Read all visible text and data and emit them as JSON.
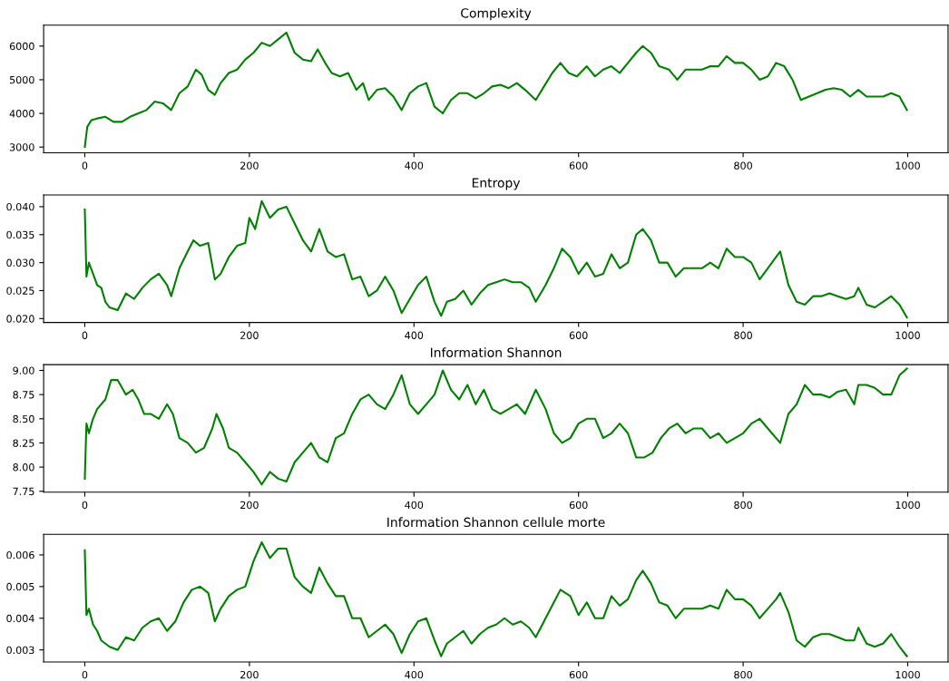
{
  "chart_data": [
    {
      "type": "line",
      "title": "Complexity",
      "xlim": [
        -50,
        1049
      ],
      "xticks": [
        0,
        200,
        400,
        600,
        800,
        1000
      ],
      "ylim": [
        2830,
        6620
      ],
      "yticks": [
        3000,
        4000,
        5000,
        6000
      ],
      "grid": false,
      "legend": false,
      "series": [
        {
          "color": "#008000",
          "x": [
            0,
            3,
            8,
            15,
            25,
            35,
            45,
            55,
            65,
            75,
            85,
            95,
            105,
            115,
            125,
            135,
            142,
            150,
            158,
            165,
            175,
            185,
            195,
            205,
            215,
            225,
            235,
            245,
            255,
            265,
            275,
            283,
            292,
            300,
            310,
            320,
            330,
            338,
            345,
            355,
            365,
            375,
            385,
            395,
            405,
            415,
            425,
            435,
            445,
            455,
            465,
            475,
            485,
            495,
            505,
            515,
            525,
            535,
            548,
            558,
            568,
            578,
            588,
            598,
            610,
            620,
            630,
            640,
            650,
            660,
            670,
            678,
            688,
            698,
            710,
            720,
            730,
            740,
            750,
            760,
            770,
            780,
            790,
            800,
            810,
            820,
            830,
            840,
            850,
            860,
            870,
            880,
            890,
            900,
            910,
            920,
            930,
            940,
            950,
            960,
            970,
            980,
            990,
            999
          ],
          "values": [
            3000,
            3600,
            3800,
            3850,
            3900,
            3750,
            3750,
            3900,
            4000,
            4100,
            4350,
            4300,
            4100,
            4600,
            4800,
            5300,
            5150,
            4700,
            4550,
            4900,
            5200,
            5300,
            5600,
            5800,
            6100,
            6000,
            6200,
            6400,
            5800,
            5600,
            5550,
            5900,
            5500,
            5200,
            5100,
            5200,
            4700,
            4900,
            4400,
            4700,
            4750,
            4500,
            4100,
            4600,
            4800,
            4900,
            4200,
            4000,
            4400,
            4600,
            4600,
            4450,
            4600,
            4800,
            4850,
            4750,
            4900,
            4700,
            4400,
            4800,
            5200,
            5500,
            5200,
            5100,
            5400,
            5100,
            5300,
            5400,
            5200,
            5500,
            5800,
            6000,
            5800,
            5400,
            5300,
            5000,
            5300,
            5300,
            5300,
            5400,
            5400,
            5700,
            5500,
            5500,
            5300,
            5000,
            5100,
            5500,
            5400,
            5000,
            4400,
            4500,
            4600,
            4700,
            4750,
            4700,
            4500,
            4700,
            4500,
            4500,
            4500,
            4600,
            4500,
            4100
          ]
        }
      ]
    },
    {
      "type": "line",
      "title": "Entropy",
      "xlim": [
        -50,
        1049
      ],
      "xticks": [
        0,
        200,
        400,
        600,
        800,
        1000
      ],
      "ylim": [
        0.0193,
        0.0421
      ],
      "yticks": [
        {
          "value": 0.02,
          "label": "0.020"
        },
        {
          "value": 0.025,
          "label": "0.025"
        },
        {
          "value": 0.03,
          "label": "0.030"
        },
        {
          "value": 0.035,
          "label": "0.035"
        },
        {
          "value": 0.04,
          "label": "0.040"
        }
      ],
      "grid": false,
      "legend": false,
      "series": [
        {
          "color": "#008000",
          "x": [
            0,
            2,
            5,
            10,
            15,
            20,
            25,
            30,
            40,
            50,
            60,
            70,
            80,
            90,
            100,
            105,
            115,
            125,
            132,
            140,
            150,
            158,
            165,
            175,
            185,
            195,
            200,
            207,
            215,
            225,
            235,
            245,
            255,
            265,
            275,
            285,
            295,
            305,
            315,
            325,
            335,
            345,
            355,
            365,
            375,
            385,
            395,
            405,
            415,
            425,
            433,
            440,
            450,
            460,
            470,
            480,
            490,
            500,
            510,
            520,
            530,
            540,
            548,
            560,
            570,
            580,
            590,
            600,
            610,
            620,
            630,
            640,
            650,
            660,
            670,
            678,
            688,
            698,
            708,
            718,
            728,
            740,
            750,
            760,
            770,
            780,
            790,
            800,
            810,
            820,
            830,
            840,
            845,
            855,
            865,
            875,
            885,
            895,
            905,
            915,
            925,
            935,
            940,
            950,
            960,
            970,
            980,
            990,
            999
          ],
          "values": [
            0.0395,
            0.0275,
            0.03,
            0.028,
            0.026,
            0.0255,
            0.023,
            0.022,
            0.0215,
            0.0245,
            0.0235,
            0.0255,
            0.027,
            0.028,
            0.026,
            0.024,
            0.029,
            0.032,
            0.034,
            0.033,
            0.0335,
            0.027,
            0.028,
            0.031,
            0.033,
            0.0335,
            0.038,
            0.036,
            0.041,
            0.038,
            0.0395,
            0.04,
            0.037,
            0.034,
            0.032,
            0.036,
            0.032,
            0.031,
            0.0315,
            0.027,
            0.0275,
            0.024,
            0.025,
            0.0275,
            0.025,
            0.021,
            0.0235,
            0.026,
            0.0275,
            0.023,
            0.0205,
            0.023,
            0.0235,
            0.025,
            0.0225,
            0.0245,
            0.026,
            0.0265,
            0.027,
            0.0265,
            0.0265,
            0.0255,
            0.023,
            0.026,
            0.029,
            0.0325,
            0.031,
            0.028,
            0.03,
            0.0275,
            0.028,
            0.0315,
            0.029,
            0.03,
            0.035,
            0.036,
            0.034,
            0.03,
            0.03,
            0.0275,
            0.029,
            0.029,
            0.029,
            0.03,
            0.029,
            0.0325,
            0.031,
            0.031,
            0.03,
            0.027,
            0.029,
            0.031,
            0.032,
            0.026,
            0.023,
            0.0225,
            0.024,
            0.024,
            0.0245,
            0.024,
            0.0235,
            0.024,
            0.0255,
            0.0225,
            0.022,
            0.023,
            0.024,
            0.0225,
            0.0202
          ]
        }
      ]
    },
    {
      "type": "line",
      "title": "Information Shannon",
      "xlim": [
        -50,
        1049
      ],
      "xticks": [
        0,
        200,
        400,
        600,
        800,
        1000
      ],
      "ylim": [
        7.74,
        9.06
      ],
      "yticks": [
        {
          "value": 7.75,
          "label": "7.75"
        },
        {
          "value": 8.0,
          "label": "8.00"
        },
        {
          "value": 8.25,
          "label": "8.25"
        },
        {
          "value": 8.5,
          "label": "8.50"
        },
        {
          "value": 8.75,
          "label": "8.75"
        },
        {
          "value": 9.0,
          "label": "9.00"
        }
      ],
      "grid": false,
      "legend": false,
      "series": [
        {
          "color": "#008000",
          "x": [
            0,
            2,
            5,
            10,
            15,
            25,
            32,
            40,
            50,
            58,
            65,
            72,
            80,
            90,
            100,
            107,
            115,
            125,
            135,
            145,
            155,
            160,
            168,
            175,
            185,
            195,
            205,
            215,
            225,
            235,
            245,
            255,
            265,
            275,
            285,
            295,
            305,
            315,
            325,
            335,
            345,
            355,
            365,
            375,
            385,
            395,
            405,
            415,
            425,
            435,
            445,
            455,
            465,
            475,
            485,
            495,
            505,
            515,
            525,
            535,
            548,
            560,
            570,
            580,
            590,
            600,
            610,
            620,
            630,
            640,
            650,
            660,
            670,
            680,
            690,
            700,
            710,
            720,
            730,
            740,
            750,
            760,
            770,
            780,
            790,
            800,
            810,
            820,
            830,
            845,
            855,
            865,
            875,
            885,
            895,
            905,
            915,
            925,
            935,
            940,
            950,
            960,
            970,
            980,
            990,
            999
          ],
          "values": [
            7.88,
            8.45,
            8.35,
            8.5,
            8.6,
            8.7,
            8.9,
            8.9,
            8.75,
            8.8,
            8.7,
            8.55,
            8.55,
            8.5,
            8.65,
            8.55,
            8.3,
            8.25,
            8.15,
            8.2,
            8.4,
            8.55,
            8.4,
            8.2,
            8.15,
            8.05,
            7.95,
            7.82,
            7.95,
            7.88,
            7.85,
            8.05,
            8.15,
            8.25,
            8.1,
            8.05,
            8.3,
            8.35,
            8.55,
            8.7,
            8.75,
            8.65,
            8.6,
            8.75,
            8.95,
            8.65,
            8.55,
            8.65,
            8.75,
            9.0,
            8.8,
            8.7,
            8.85,
            8.65,
            8.8,
            8.6,
            8.55,
            8.6,
            8.65,
            8.55,
            8.8,
            8.6,
            8.35,
            8.25,
            8.3,
            8.45,
            8.5,
            8.5,
            8.3,
            8.35,
            8.45,
            8.35,
            8.1,
            8.1,
            8.15,
            8.3,
            8.4,
            8.45,
            8.35,
            8.4,
            8.4,
            8.3,
            8.35,
            8.25,
            8.3,
            8.35,
            8.45,
            8.5,
            8.4,
            8.25,
            8.55,
            8.65,
            8.85,
            8.75,
            8.75,
            8.72,
            8.78,
            8.8,
            8.65,
            8.85,
            8.85,
            8.82,
            8.75,
            8.75,
            8.95,
            9.02
          ]
        }
      ]
    },
    {
      "type": "line",
      "title": "Information Shannon cellule morte",
      "xlim": [
        -50,
        1049
      ],
      "xticks": [
        0,
        200,
        400,
        600,
        800,
        1000
      ],
      "ylim": [
        0.00262,
        0.00665
      ],
      "yticks": [
        0.003,
        0.004,
        0.005,
        0.006
      ],
      "grid": false,
      "legend": false,
      "series": [
        {
          "color": "#008000",
          "x": [
            0,
            2,
            5,
            10,
            15,
            20,
            30,
            40,
            50,
            60,
            70,
            80,
            90,
            100,
            110,
            120,
            130,
            140,
            150,
            158,
            165,
            175,
            185,
            195,
            205,
            215,
            225,
            235,
            245,
            255,
            265,
            275,
            285,
            295,
            305,
            315,
            325,
            335,
            345,
            355,
            365,
            375,
            385,
            395,
            405,
            415,
            425,
            433,
            440,
            450,
            460,
            470,
            480,
            490,
            500,
            510,
            520,
            530,
            540,
            548,
            560,
            570,
            578,
            590,
            600,
            610,
            620,
            630,
            640,
            650,
            660,
            670,
            678,
            688,
            698,
            708,
            718,
            728,
            740,
            750,
            760,
            770,
            780,
            790,
            800,
            810,
            820,
            830,
            840,
            845,
            855,
            865,
            875,
            885,
            895,
            905,
            915,
            925,
            935,
            940,
            950,
            960,
            970,
            980,
            990,
            999
          ],
          "values": [
            0.00615,
            0.0041,
            0.0043,
            0.0038,
            0.0036,
            0.0033,
            0.0031,
            0.003,
            0.0034,
            0.0033,
            0.0037,
            0.0039,
            0.004,
            0.0036,
            0.0039,
            0.0045,
            0.0049,
            0.005,
            0.0048,
            0.0039,
            0.0043,
            0.0047,
            0.0049,
            0.005,
            0.0058,
            0.0064,
            0.0059,
            0.0062,
            0.0062,
            0.0053,
            0.005,
            0.0048,
            0.0056,
            0.0051,
            0.0047,
            0.0047,
            0.004,
            0.004,
            0.0034,
            0.0036,
            0.0038,
            0.0035,
            0.0029,
            0.0035,
            0.0039,
            0.004,
            0.0033,
            0.0028,
            0.0032,
            0.0034,
            0.0036,
            0.0032,
            0.0035,
            0.0037,
            0.0038,
            0.004,
            0.0038,
            0.0039,
            0.0037,
            0.0034,
            0.004,
            0.0045,
            0.0049,
            0.0047,
            0.0041,
            0.0045,
            0.004,
            0.004,
            0.0047,
            0.0044,
            0.0046,
            0.0052,
            0.0055,
            0.0051,
            0.0045,
            0.0044,
            0.004,
            0.0043,
            0.0043,
            0.0043,
            0.0044,
            0.0043,
            0.0049,
            0.0046,
            0.0046,
            0.0044,
            0.004,
            0.0043,
            0.0046,
            0.0048,
            0.0042,
            0.0033,
            0.0031,
            0.0034,
            0.0035,
            0.0035,
            0.0034,
            0.0033,
            0.0033,
            0.0037,
            0.0032,
            0.0031,
            0.0032,
            0.0035,
            0.0031,
            0.0028
          ]
        }
      ]
    }
  ]
}
